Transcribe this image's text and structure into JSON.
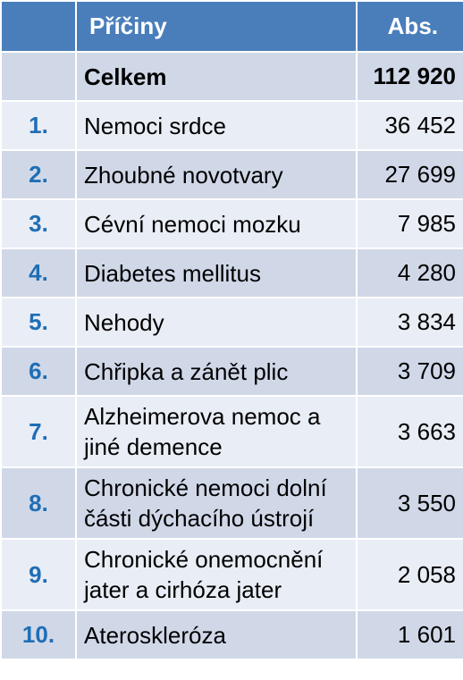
{
  "header": {
    "cause": "Příčiny",
    "abs": "Abs."
  },
  "total": {
    "label": "Celkem",
    "value": "112 920"
  },
  "rows": [
    {
      "rank": "1.",
      "cause": "Nemoci srdce",
      "value": "36 452"
    },
    {
      "rank": "2.",
      "cause": "Zhoubné novotvary",
      "value": "27 699"
    },
    {
      "rank": "3.",
      "cause": "Cévní nemoci mozku",
      "value": "7 985"
    },
    {
      "rank": "4.",
      "cause": "Diabetes mellitus",
      "value": "4 280"
    },
    {
      "rank": "5.",
      "cause": "Nehody",
      "value": "3 834"
    },
    {
      "rank": "6.",
      "cause": "Chřipka a zánět plic",
      "value": "3 709"
    },
    {
      "rank": "7.",
      "cause": "Alzheimerova nemoc a jiné demence",
      "value": "3 663"
    },
    {
      "rank": "8.",
      "cause": "Chronické nemoci dolní části dýchacího ústrojí",
      "value": "3 550"
    },
    {
      "rank": "9.",
      "cause": "Chronické onemocnění jater a cirhóza jater",
      "value": "2 058"
    },
    {
      "rank": "10.",
      "cause": "Ateroskleróza",
      "value": "1 601"
    }
  ],
  "colors": {
    "header_bg": "#4a7ebb",
    "row_dark": "#d0d8e8",
    "row_light": "#e9edf5",
    "rank_text": "#1f6eb5"
  }
}
